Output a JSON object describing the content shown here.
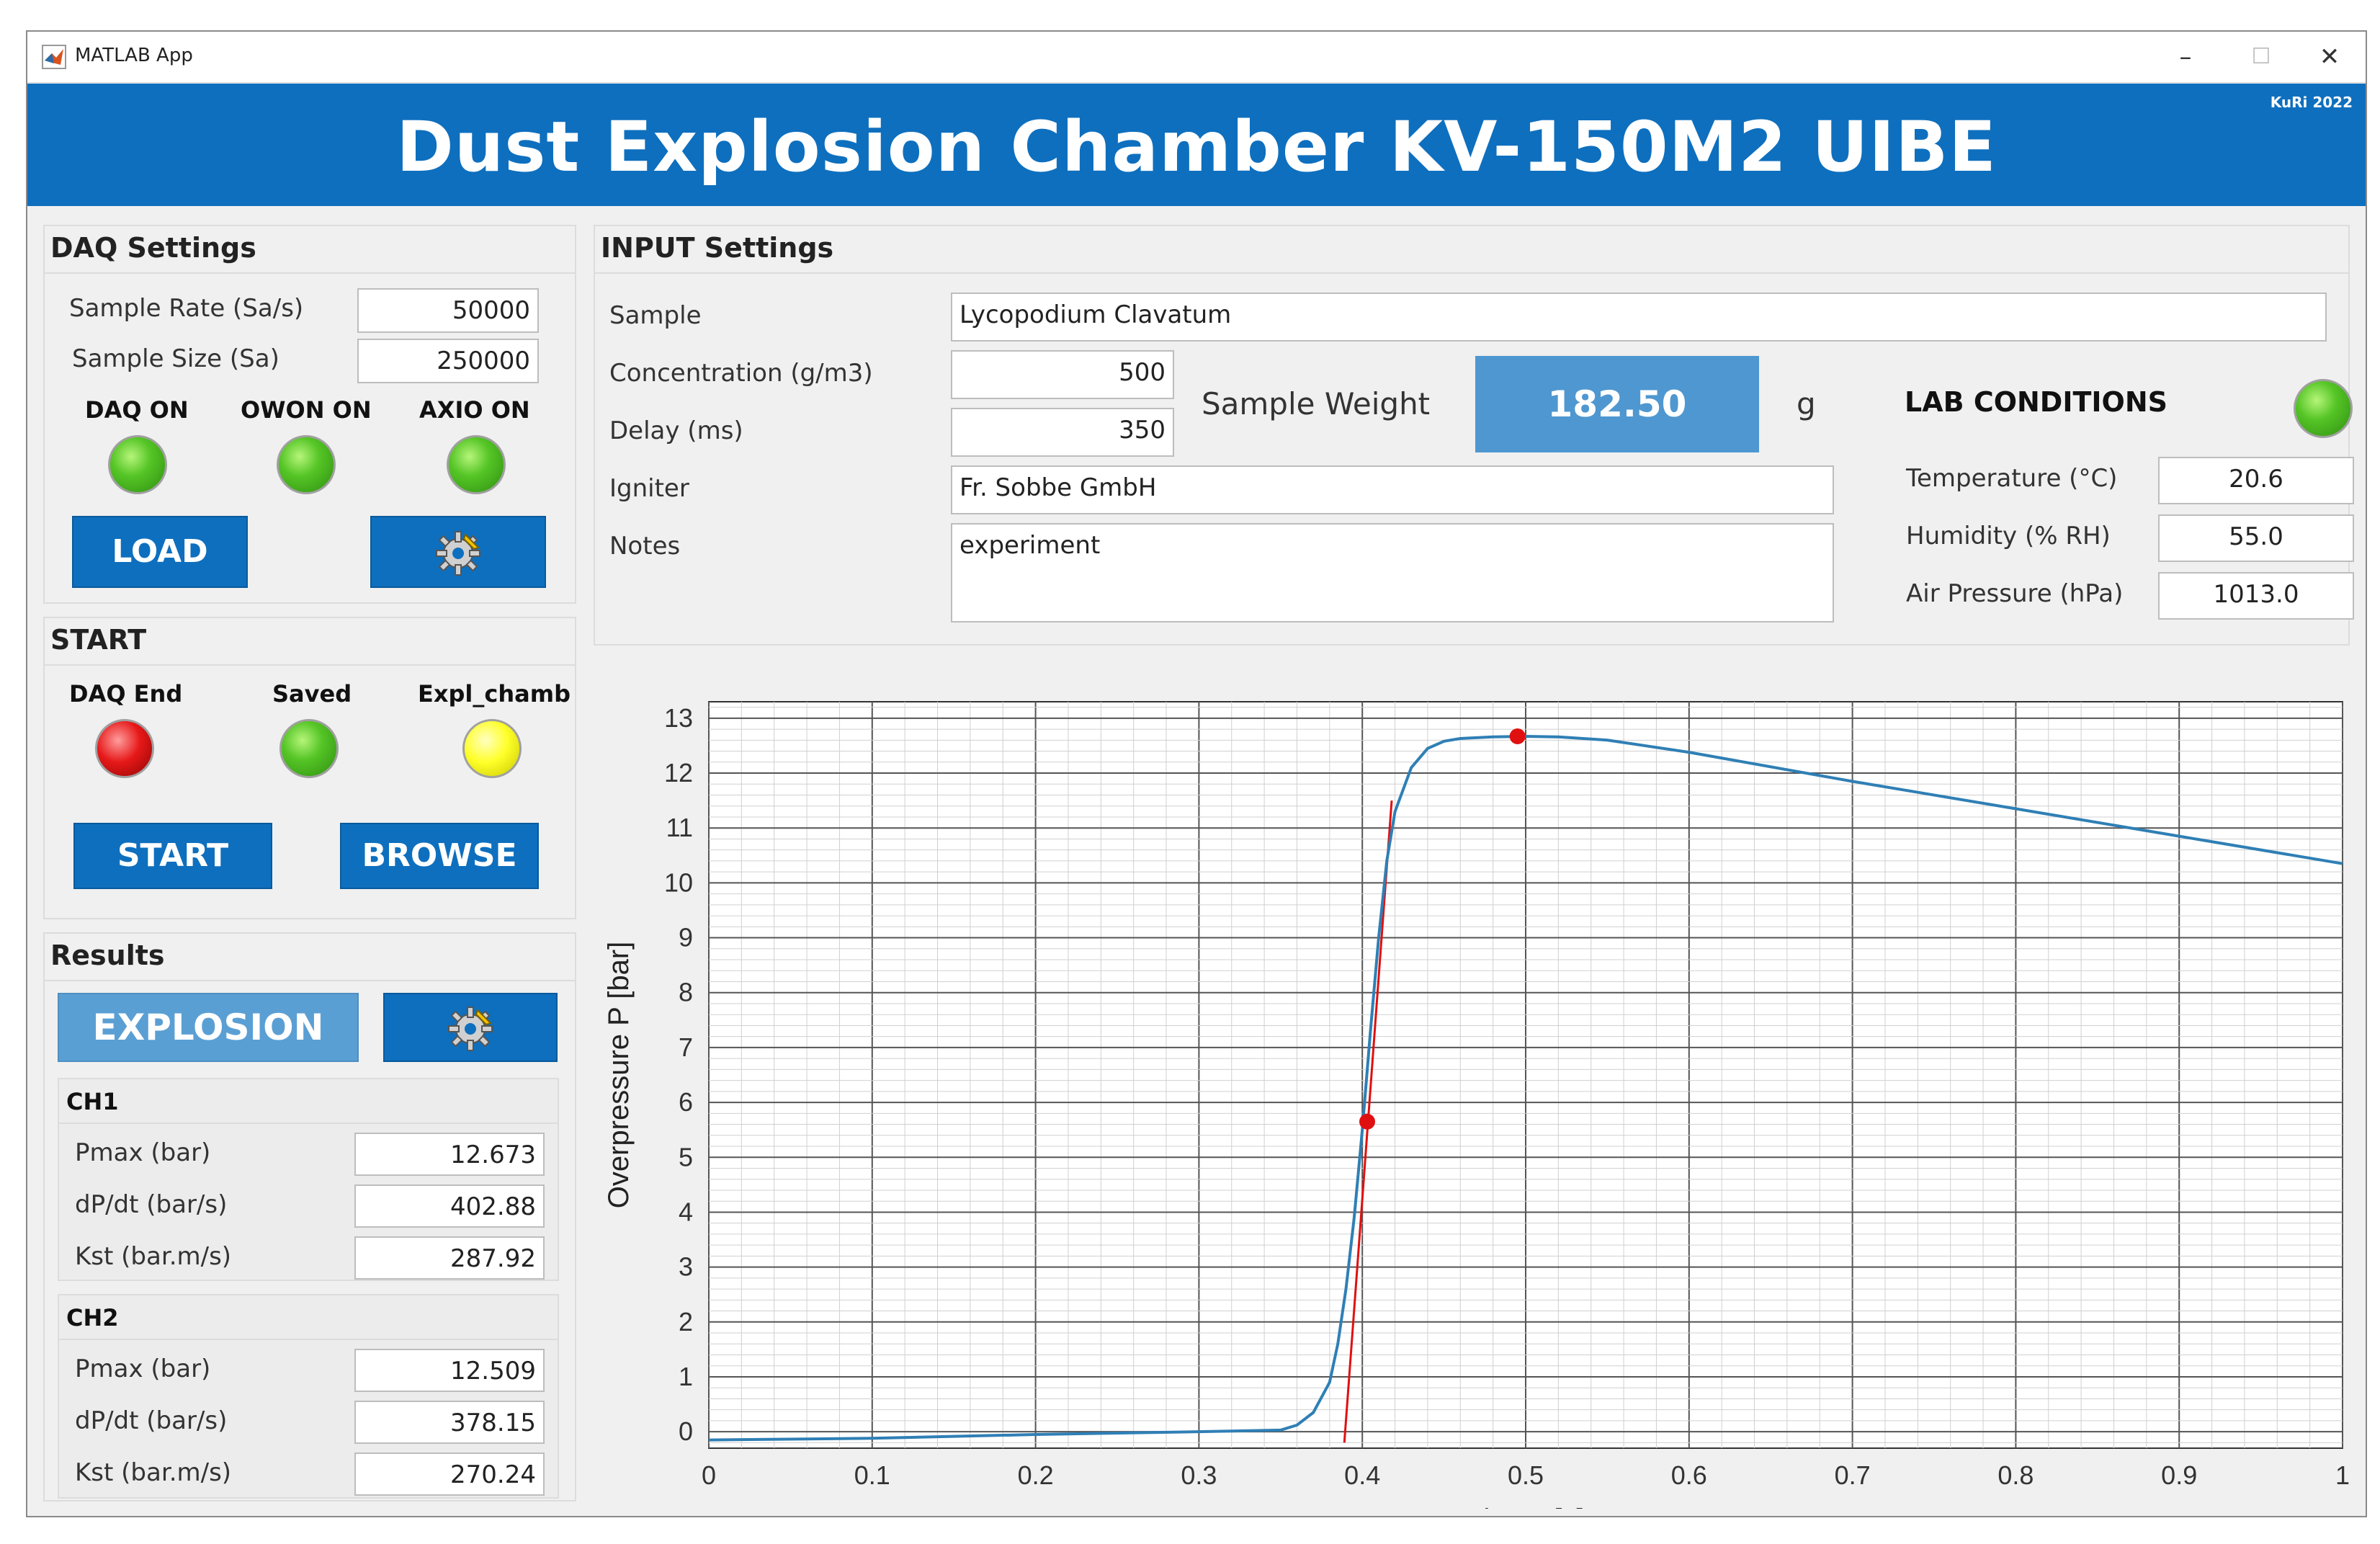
{
  "window": {
    "title": "MATLAB App",
    "controls": [
      "–",
      "☐",
      "✕"
    ],
    "banner_title": "Dust Explosion Chamber KV-150M2 UIBE",
    "banner_credit": "KuRi 2022"
  },
  "daq": {
    "title": "DAQ Settings",
    "sample_rate_label": "Sample Rate (Sa/s)",
    "sample_rate": "50000",
    "sample_size_label": "Sample Size (Sa)",
    "sample_size": "250000",
    "lamps": [
      {
        "label": "DAQ ON",
        "color": "green"
      },
      {
        "label": "OWON ON",
        "color": "green"
      },
      {
        "label": "AXIO ON",
        "color": "green"
      }
    ],
    "load_label": "LOAD",
    "settings_icon": "gear-icon"
  },
  "start": {
    "title": "START",
    "lamps": [
      {
        "label": "DAQ End",
        "color": "red"
      },
      {
        "label": "Saved",
        "color": "green"
      },
      {
        "label": "Expl_chamb",
        "color": "yellow"
      }
    ],
    "start_label": "START",
    "browse_label": "BROWSE"
  },
  "results": {
    "title": "Results",
    "explosion_label": "EXPLOSION",
    "channels": [
      {
        "name": "CH1",
        "rows": [
          {
            "label": "Pmax (bar)",
            "value": "12.673"
          },
          {
            "label": "dP/dt (bar/s)",
            "value": "402.88"
          },
          {
            "label": "Kst (bar.m/s)",
            "value": "287.92"
          }
        ]
      },
      {
        "name": "CH2",
        "rows": [
          {
            "label": "Pmax (bar)",
            "value": "12.509"
          },
          {
            "label": "dP/dt (bar/s)",
            "value": "378.15"
          },
          {
            "label": "Kst (bar.m/s)",
            "value": "270.24"
          }
        ]
      }
    ]
  },
  "input": {
    "title": "INPUT Settings",
    "sample_label": "Sample",
    "sample": "Lycopodium Clavatum",
    "concentration_label": "Concentration (g/m3)",
    "concentration": "500",
    "delay_label": "Delay (ms)",
    "delay": "350",
    "weight_label": "Sample Weight",
    "weight": "182.50",
    "weight_unit": "g",
    "igniter_label": "Igniter",
    "igniter": "Fr. Sobbe GmbH",
    "notes_label": "Notes",
    "notes": "experiment"
  },
  "lab": {
    "title": "LAB CONDITIONS",
    "lamp_color": "green",
    "temperature_label": "Temperature (°C)",
    "temperature": "20.6",
    "humidity_label": "Humidity (% RH)",
    "humidity": "55.0",
    "pressure_label": "Air Pressure (hPa)",
    "pressure": "1013.0"
  },
  "colors": {
    "accent": "#0e6fbe",
    "curve": "#2f7fb5",
    "tangent": "#e01010",
    "marker": "#e01010"
  },
  "chart_data": {
    "type": "line",
    "xlabel": "Time t [s]",
    "ylabel": "Overpressure P [bar]",
    "xlim": [
      0,
      1
    ],
    "ylim": [
      -0.3,
      13.3
    ],
    "xticks": [
      "0",
      "0.1",
      "0.2",
      "0.3",
      "0.4",
      "0.5",
      "0.6",
      "0.7",
      "0.8",
      "0.9",
      "1"
    ],
    "yticks": [
      "0",
      "1",
      "2",
      "3",
      "4",
      "5",
      "6",
      "7",
      "8",
      "9",
      "10",
      "11",
      "12",
      "13"
    ],
    "grid": true,
    "series": [
      {
        "x": [
          0,
          0.1,
          0.2,
          0.3,
          0.35,
          0.36,
          0.37,
          0.38,
          0.385,
          0.39,
          0.395,
          0.4,
          0.405,
          0.41,
          0.415,
          0.42,
          0.43,
          0.44,
          0.45,
          0.46,
          0.48,
          0.5,
          0.52,
          0.55,
          0.6,
          0.7,
          0.8,
          0.9,
          1.0
        ],
        "y": [
          -0.15,
          -0.12,
          -0.05,
          0.0,
          0.03,
          0.12,
          0.35,
          0.9,
          1.6,
          2.6,
          3.9,
          5.5,
          7.3,
          9.0,
          10.4,
          11.3,
          12.1,
          12.45,
          12.58,
          12.63,
          12.66,
          12.67,
          12.66,
          12.6,
          12.38,
          11.85,
          11.35,
          10.85,
          10.35
        ]
      }
    ],
    "tangent": {
      "x": [
        0.389,
        0.418
      ],
      "y": [
        -0.2,
        11.5
      ]
    },
    "markers": [
      {
        "x": 0.403,
        "y": 5.65
      },
      {
        "x": 0.495,
        "y": 12.67
      }
    ]
  }
}
